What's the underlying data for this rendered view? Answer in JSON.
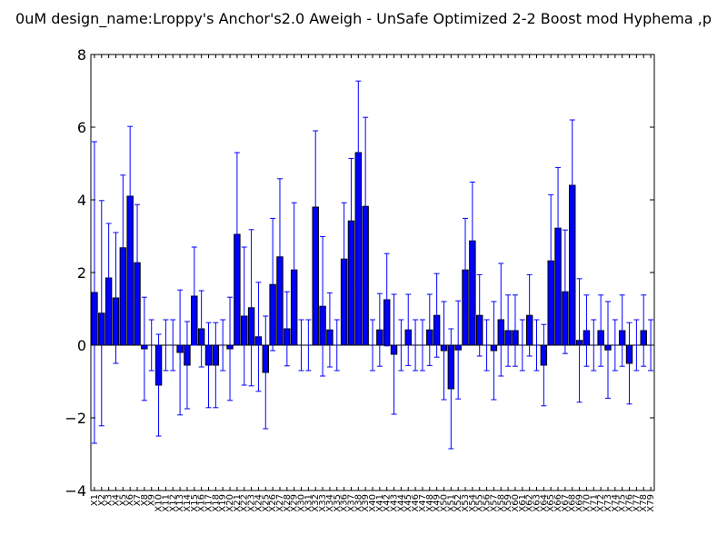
{
  "chart_data": {
    "type": "bar",
    "title": "0uM  design_name:Lroppy's Anchor's2.0 Aweigh - UnSafe Optimized 2-2 Boost mod Hyphema ,p",
    "xlabel": "",
    "ylabel": "",
    "ylim": [
      -4,
      8
    ],
    "yticks": [
      -4,
      -2,
      0,
      2,
      4,
      6,
      8
    ],
    "grid": false,
    "bar_color": "#0000ff",
    "error_color": "#0000ff",
    "categories": [
      "X1",
      "X2",
      "X3",
      "X4",
      "X5",
      "X6",
      "X7",
      "X8",
      "X9",
      "X10",
      "X11",
      "X12",
      "X13",
      "X14",
      "X15",
      "X16",
      "X17",
      "X18",
      "X19",
      "X20",
      "X21",
      "X22",
      "X23",
      "X24",
      "X25",
      "X26",
      "X27",
      "X28",
      "X29",
      "X30",
      "X31",
      "X32",
      "X33",
      "X34",
      "X35",
      "X36",
      "X37",
      "X38",
      "X39",
      "X40",
      "X41",
      "X42",
      "X43",
      "X44",
      "X45",
      "X46",
      "X47",
      "X48",
      "X49",
      "X50",
      "X51",
      "X52",
      "X53",
      "X54",
      "X55",
      "X56",
      "X57",
      "X58",
      "X59",
      "X60",
      "X61",
      "X62",
      "X63",
      "X64",
      "X65",
      "X66",
      "X67",
      "X68",
      "X69",
      "X70",
      "X71",
      "X72",
      "X73",
      "X74",
      "X75",
      "X76",
      "X77",
      "X78",
      "X79"
    ],
    "values": [
      1.45,
      0.88,
      1.85,
      1.3,
      2.68,
      4.1,
      2.27,
      -0.1,
      0.0,
      -1.1,
      0.0,
      0.0,
      -0.2,
      -0.55,
      1.35,
      0.45,
      -0.55,
      -0.55,
      0.0,
      -0.1,
      3.05,
      0.8,
      1.03,
      0.23,
      -0.75,
      1.67,
      2.43,
      0.45,
      2.07,
      0.0,
      0.0,
      3.8,
      1.07,
      0.42,
      0.0,
      2.37,
      3.42,
      5.3,
      3.82,
      0.0,
      0.42,
      1.25,
      -0.25,
      0.0,
      0.42,
      0.0,
      0.0,
      0.42,
      0.82,
      -0.15,
      -1.2,
      -0.13,
      2.07,
      2.87,
      0.82,
      0.0,
      -0.15,
      0.7,
      0.4,
      0.4,
      0.0,
      0.82,
      0.0,
      -0.55,
      2.32,
      3.22,
      1.47,
      4.4,
      0.13,
      0.4,
      0.0,
      0.4,
      -0.13,
      0.0,
      0.4,
      -0.5,
      0.0,
      0.4,
      0.0
    ],
    "errors": [
      4.15,
      3.1,
      1.5,
      1.8,
      2.0,
      1.92,
      1.6,
      1.42,
      0.7,
      1.4,
      0.7,
      0.7,
      1.72,
      1.2,
      1.35,
      1.05,
      1.17,
      1.17,
      0.7,
      1.42,
      2.25,
      1.9,
      2.15,
      1.5,
      1.55,
      1.82,
      2.15,
      1.02,
      1.85,
      0.7,
      0.7,
      2.1,
      1.92,
      1.02,
      0.7,
      1.55,
      1.72,
      1.97,
      2.45,
      0.7,
      1.0,
      1.27,
      1.65,
      0.7,
      0.98,
      0.7,
      0.7,
      0.98,
      1.15,
      1.35,
      1.65,
      1.35,
      1.42,
      1.62,
      1.12,
      0.7,
      1.35,
      1.55,
      0.98,
      0.98,
      0.7,
      1.12,
      0.7,
      1.12,
      1.82,
      1.67,
      1.7,
      1.8,
      1.7,
      0.98,
      0.7,
      0.98,
      1.33,
      0.7,
      0.98,
      1.12,
      0.7,
      0.98,
      0.7
    ]
  }
}
